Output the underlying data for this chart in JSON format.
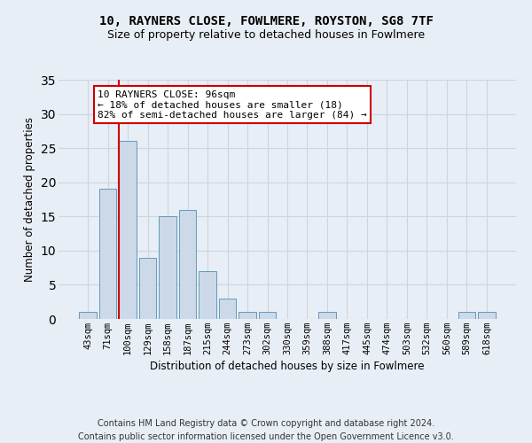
{
  "title1": "10, RAYNERS CLOSE, FOWLMERE, ROYSTON, SG8 7TF",
  "title2": "Size of property relative to detached houses in Fowlmere",
  "xlabel": "Distribution of detached houses by size in Fowlmere",
  "ylabel": "Number of detached properties",
  "bar_labels": [
    "43sqm",
    "71sqm",
    "100sqm",
    "129sqm",
    "158sqm",
    "187sqm",
    "215sqm",
    "244sqm",
    "273sqm",
    "302sqm",
    "330sqm",
    "359sqm",
    "388sqm",
    "417sqm",
    "445sqm",
    "474sqm",
    "503sqm",
    "532sqm",
    "560sqm",
    "589sqm",
    "618sqm"
  ],
  "bar_values": [
    1,
    19,
    26,
    9,
    15,
    16,
    7,
    3,
    1,
    1,
    0,
    0,
    1,
    0,
    0,
    0,
    0,
    0,
    0,
    1,
    1
  ],
  "bar_color": "#ccd9e8",
  "bar_edgecolor": "#6699bb",
  "grid_color": "#ccd6e0",
  "background_color": "#e8eef5",
  "vline_x_index": 2,
  "vline_color": "#cc0000",
  "annotation_line1": "10 RAYNERS CLOSE: 96sqm",
  "annotation_line2": "← 18% of detached houses are smaller (18)",
  "annotation_line3": "82% of semi-detached houses are larger (84) →",
  "annotation_box_edgecolor": "#cc0000",
  "annotation_box_facecolor": "#ffffff",
  "footer_line1": "Contains HM Land Registry data © Crown copyright and database right 2024.",
  "footer_line2": "Contains public sector information licensed under the Open Government Licence v3.0.",
  "ylim": [
    0,
    35
  ],
  "yticks": [
    0,
    5,
    10,
    15,
    20,
    25,
    30,
    35
  ],
  "title1_fontsize": 10,
  "title2_fontsize": 9,
  "xlabel_fontsize": 8.5,
  "ylabel_fontsize": 8.5,
  "tick_fontsize": 7.5,
  "annotation_fontsize": 8,
  "footer_fontsize": 7
}
